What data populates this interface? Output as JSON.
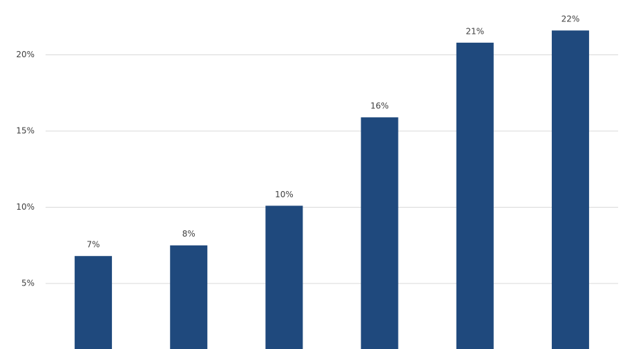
{
  "chart_data": {
    "type": "bar",
    "categories": [
      null,
      null,
      null,
      null,
      null,
      null
    ],
    "values": [
      6.8,
      7.5,
      10.1,
      15.9,
      20.8,
      21.6
    ],
    "value_labels": [
      "7%",
      "8%",
      "10%",
      "16%",
      "21%",
      "22%"
    ],
    "color": "#1f497d",
    "ylim": [
      0.7,
      23.6
    ],
    "yticks": [
      {
        "value": 5,
        "label": "5%"
      },
      {
        "value": 10,
        "label": "10%"
      },
      {
        "value": 15,
        "label": "15%"
      },
      {
        "value": 20,
        "label": "20%"
      }
    ],
    "grid": true
  }
}
